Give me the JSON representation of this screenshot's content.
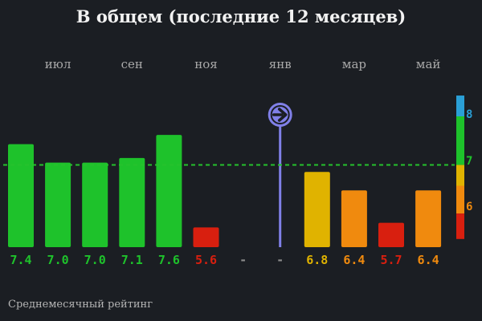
{
  "chart_data": {
    "type": "bar",
    "title": "В общем (последние 12 месяцев)",
    "categories": [
      "",
      "июл",
      "",
      "сен",
      "",
      "ноя",
      "",
      "янв",
      "",
      "мар",
      "",
      "май"
    ],
    "values": [
      7.4,
      7.0,
      7.0,
      7.1,
      7.6,
      5.6,
      null,
      null,
      6.8,
      6.4,
      5.7,
      6.4
    ],
    "value_labels": [
      "7.4",
      "7.0",
      "7.0",
      "7.1",
      "7.6",
      "5.6",
      "-",
      "-",
      "6.8",
      "6.4",
      "5.7",
      "6.4"
    ],
    "average": 6.95,
    "marker_category_index": 7,
    "footer_label": "Среднемесячный рейтинг",
    "scale_ticks": [
      "8",
      "7",
      "6"
    ],
    "colors": {
      "background": "#1b1e23",
      "green": "#1ec22b",
      "yellow": "#e0b300",
      "orange": "#f08a0e",
      "red": "#d81f0f",
      "blue": "#2a9fd6",
      "marker": "#8080e8",
      "avg_line": "#25c22c"
    }
  }
}
